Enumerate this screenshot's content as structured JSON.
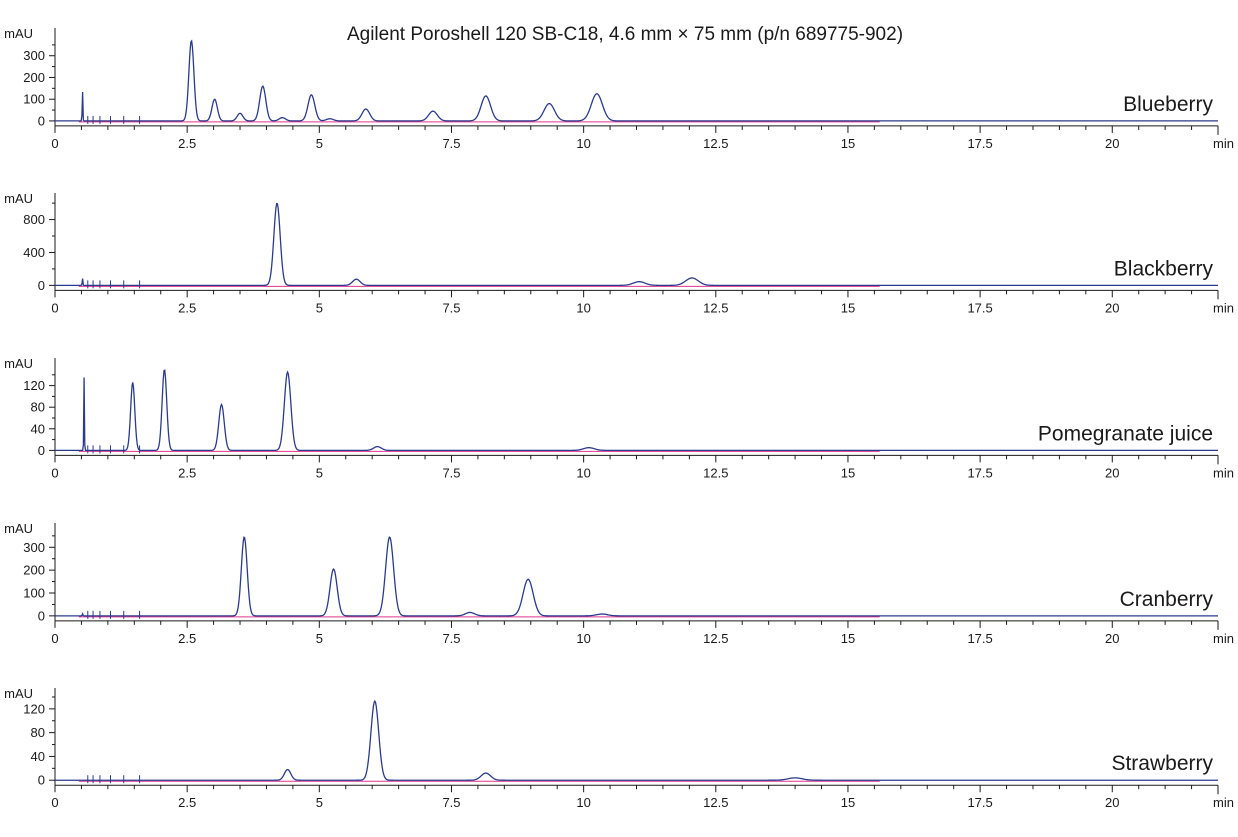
{
  "title": "Agilent Poroshell 120 SB-C18, 4.6 mm × 75 mm (p/n 689775-902)",
  "colors": {
    "trace": "#2b3a8c",
    "baseline": "#e0358f",
    "axis": "#1a1a1a"
  },
  "chart_data": [
    {
      "type": "line",
      "sample": "Blueberry",
      "ylabel": "mAU",
      "xlabel": "min",
      "xlim": [
        0,
        22
      ],
      "ylim": [
        -5,
        400
      ],
      "x_ticks": [
        0,
        2.5,
        5,
        7.5,
        10,
        12.5,
        15,
        17.5,
        20
      ],
      "x_tick_labels": [
        "0",
        "2.5",
        "5",
        "7.5",
        "10",
        "12.5",
        "15",
        "17.5",
        "20"
      ],
      "y_ticks": [
        0,
        100,
        200,
        300
      ],
      "y_tick_labels": [
        "0",
        "100",
        "200",
        "300"
      ],
      "spike": {
        "t": 0.52,
        "h": 145
      },
      "peaks": [
        {
          "t": 2.58,
          "h": 370
        },
        {
          "t": 3.02,
          "h": 100
        },
        {
          "t": 3.5,
          "h": 35
        },
        {
          "t": 3.93,
          "h": 160
        },
        {
          "t": 4.3,
          "h": 15
        },
        {
          "t": 4.85,
          "h": 120
        },
        {
          "t": 5.2,
          "h": 10
        },
        {
          "t": 5.88,
          "h": 55
        },
        {
          "t": 7.15,
          "h": 45
        },
        {
          "t": 8.15,
          "h": 115
        },
        {
          "t": 9.35,
          "h": 80
        },
        {
          "t": 10.25,
          "h": 125
        }
      ]
    },
    {
      "type": "line",
      "sample": "Blackberry",
      "ylabel": "mAU",
      "xlabel": "min",
      "xlim": [
        0,
        22
      ],
      "ylim": [
        -20,
        1050
      ],
      "x_ticks": [
        0,
        2.5,
        5,
        7.5,
        10,
        12.5,
        15,
        17.5,
        20
      ],
      "x_tick_labels": [
        "0",
        "2.5",
        "5",
        "7.5",
        "10",
        "12.5",
        "15",
        "17.5",
        "20"
      ],
      "y_ticks": [
        0,
        400,
        800
      ],
      "y_tick_labels": [
        "0",
        "400",
        "800"
      ],
      "spike": {
        "t": 0.52,
        "h": 90
      },
      "peaks": [
        {
          "t": 4.2,
          "h": 1000
        },
        {
          "t": 5.7,
          "h": 75
        },
        {
          "t": 11.05,
          "h": 45
        },
        {
          "t": 12.05,
          "h": 90
        }
      ]
    },
    {
      "type": "line",
      "sample": "Pomegranate juice",
      "ylabel": "mAU",
      "xlabel": "min",
      "xlim": [
        0,
        22
      ],
      "ylim": [
        -3,
        160
      ],
      "x_ticks": [
        0,
        2.5,
        5,
        7.5,
        10,
        12.5,
        15,
        17.5,
        20
      ],
      "x_tick_labels": [
        "0",
        "2.5",
        "5",
        "7.5",
        "10",
        "12.5",
        "15",
        "17.5",
        "20"
      ],
      "y_ticks": [
        0,
        40,
        80,
        120
      ],
      "y_tick_labels": [
        "0",
        "40",
        "80",
        "120"
      ],
      "spike": {
        "t": 0.55,
        "h": 135
      },
      "peaks": [
        {
          "t": 1.47,
          "h": 126
        },
        {
          "t": 2.07,
          "h": 150
        },
        {
          "t": 3.15,
          "h": 85
        },
        {
          "t": 4.4,
          "h": 145
        },
        {
          "t": 6.1,
          "h": 7
        },
        {
          "t": 10.1,
          "h": 5
        }
      ]
    },
    {
      "type": "line",
      "sample": "Cranberry",
      "ylabel": "mAU",
      "xlabel": "min",
      "xlim": [
        0,
        22
      ],
      "ylim": [
        -5,
        380
      ],
      "x_ticks": [
        0,
        2.5,
        5,
        7.5,
        10,
        12.5,
        15,
        17.5,
        20
      ],
      "x_tick_labels": [
        "0",
        "2.5",
        "5",
        "7.5",
        "10",
        "12.5",
        "15",
        "17.5",
        "20"
      ],
      "y_ticks": [
        0,
        100,
        200,
        300
      ],
      "y_tick_labels": [
        "0",
        "100",
        "200",
        "300"
      ],
      "spike": {
        "t": 0.52,
        "h": 10
      },
      "peaks": [
        {
          "t": 3.58,
          "h": 345
        },
        {
          "t": 5.27,
          "h": 205
        },
        {
          "t": 6.33,
          "h": 345
        },
        {
          "t": 7.85,
          "h": 15
        },
        {
          "t": 8.95,
          "h": 160
        },
        {
          "t": 10.35,
          "h": 8
        }
      ]
    },
    {
      "type": "line",
      "sample": "Strawberry",
      "ylabel": "mAU",
      "xlabel": "min",
      "xlim": [
        0,
        22
      ],
      "ylim": [
        -3,
        145
      ],
      "x_ticks": [
        0,
        2.5,
        5,
        7.5,
        10,
        12.5,
        15,
        17.5,
        20
      ],
      "x_tick_labels": [
        "0",
        "2.5",
        "5",
        "7.5",
        "10",
        "12.5",
        "15",
        "17.5",
        "20"
      ],
      "y_ticks": [
        0,
        40,
        80,
        120
      ],
      "y_tick_labels": [
        "0",
        "40",
        "80",
        "120"
      ],
      "spike": {
        "t": 0.52,
        "h": 0
      },
      "peaks": [
        {
          "t": 4.4,
          "h": 18
        },
        {
          "t": 6.05,
          "h": 133
        },
        {
          "t": 8.15,
          "h": 12
        },
        {
          "t": 14.0,
          "h": 4
        }
      ]
    }
  ]
}
